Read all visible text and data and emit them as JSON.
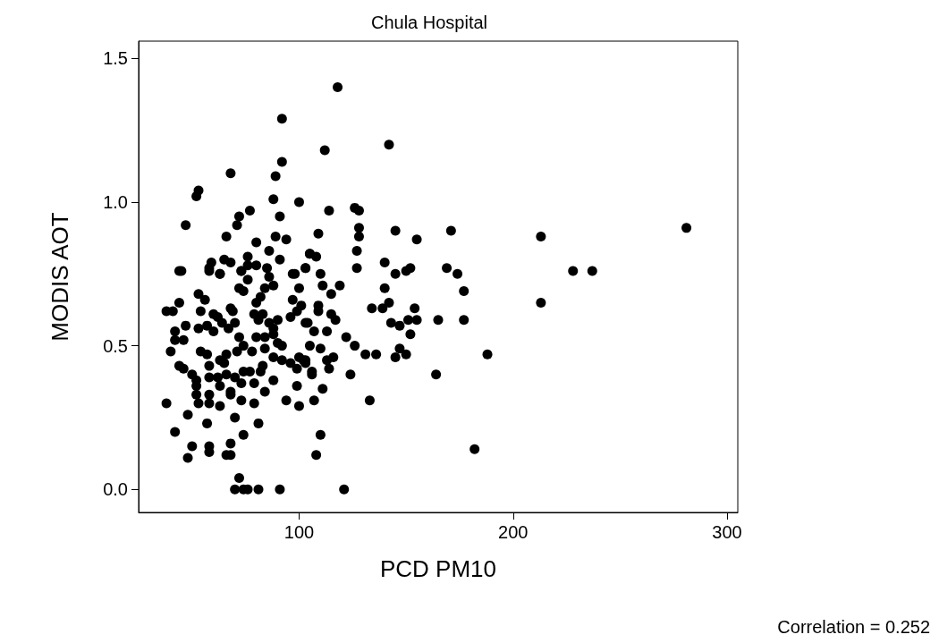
{
  "chart_data": {
    "type": "scatter",
    "title": "Chula Hospital",
    "xlabel": "PCD PM10",
    "ylabel": "MODIS AOT",
    "annotations": [
      "Correlation = 0.252"
    ],
    "marker": "circle",
    "grid": false,
    "color": "#000000",
    "xlim": [
      25,
      305
    ],
    "xticks": [
      100,
      200,
      300
    ],
    "ylim": [
      -0.08,
      1.56
    ],
    "yticks": [
      {
        "value": 0,
        "label": "0.0"
      },
      0.5,
      {
        "value": 1,
        "label": "1.0"
      },
      1.5
    ],
    "x": [
      44,
      58,
      63,
      73,
      76,
      72,
      74,
      86,
      88,
      84,
      82,
      80,
      98,
      100,
      97,
      101,
      53,
      56,
      44,
      38,
      41,
      54,
      60,
      62,
      68,
      69,
      79,
      83,
      81,
      86,
      90,
      88,
      96,
      99,
      104,
      47,
      42,
      53,
      57,
      60,
      64,
      67,
      70,
      72,
      80,
      84,
      88,
      92,
      90,
      84,
      78,
      74,
      71,
      42,
      46,
      40,
      54,
      57,
      66,
      63,
      65,
      58,
      44,
      46,
      50,
      52,
      52,
      58,
      62,
      66,
      70,
      74,
      77,
      83,
      82,
      88,
      88,
      92,
      96,
      100,
      103,
      99,
      106,
      99,
      63,
      68,
      68,
      73,
      79,
      84,
      52,
      53,
      58,
      58,
      63,
      73,
      79,
      94,
      100,
      38,
      48,
      57,
      70,
      81,
      42,
      74,
      50,
      58,
      58,
      68,
      66,
      68,
      48,
      72,
      70,
      74,
      76,
      81,
      91,
      92,
      92,
      68,
      89,
      53,
      52,
      88,
      100,
      77,
      91,
      72,
      71,
      47,
      66,
      89,
      94,
      80,
      86,
      105,
      91,
      65,
      68,
      59,
      58,
      76,
      76,
      80,
      85,
      103,
      97,
      73,
      63,
      45,
      118,
      142,
      112,
      114,
      126,
      128,
      128,
      145,
      171,
      128,
      155,
      109,
      127,
      105,
      108,
      127,
      140,
      103,
      110,
      145,
      150,
      152,
      169,
      174,
      119,
      111,
      140,
      177,
      115,
      109,
      109,
      115,
      117,
      103,
      134,
      139,
      142,
      154,
      143,
      147,
      151,
      155,
      165,
      177,
      152,
      122,
      126,
      131,
      136,
      147,
      150,
      145,
      107,
      113,
      105,
      110,
      113,
      116,
      114,
      102,
      103,
      106,
      124,
      164,
      111,
      107,
      133,
      110,
      108,
      182,
      121,
      188,
      213,
      213,
      228,
      237,
      281
    ],
    "values": [
      0.76,
      0.76,
      0.75,
      0.76,
      0.73,
      0.7,
      0.69,
      0.74,
      0.71,
      0.7,
      0.67,
      0.65,
      0.75,
      0.7,
      0.66,
      0.64,
      0.68,
      0.66,
      0.65,
      0.62,
      0.62,
      0.62,
      0.61,
      0.6,
      0.63,
      0.62,
      0.61,
      0.61,
      0.59,
      0.58,
      0.59,
      0.56,
      0.6,
      0.62,
      0.58,
      0.57,
      0.55,
      0.56,
      0.57,
      0.55,
      0.58,
      0.56,
      0.58,
      0.53,
      0.53,
      0.53,
      0.54,
      0.5,
      0.51,
      0.49,
      0.48,
      0.5,
      0.48,
      0.52,
      0.52,
      0.48,
      0.48,
      0.47,
      0.47,
      0.45,
      0.44,
      0.43,
      0.43,
      0.42,
      0.4,
      0.38,
      0.36,
      0.39,
      0.39,
      0.4,
      0.39,
      0.41,
      0.41,
      0.43,
      0.41,
      0.38,
      0.46,
      0.45,
      0.44,
      0.46,
      0.45,
      0.42,
      0.41,
      0.36,
      0.36,
      0.34,
      0.33,
      0.37,
      0.37,
      0.34,
      0.33,
      0.3,
      0.33,
      0.3,
      0.29,
      0.31,
      0.3,
      0.31,
      0.29,
      0.3,
      0.26,
      0.23,
      0.25,
      0.23,
      0.2,
      0.19,
      0.15,
      0.15,
      0.13,
      0.16,
      0.12,
      0.12,
      0.11,
      0.04,
      0,
      0,
      0,
      0,
      0,
      1.29,
      1.14,
      1.1,
      1.09,
      1.04,
      1.02,
      1.01,
      1.0,
      0.97,
      0.95,
      0.95,
      0.92,
      0.92,
      0.88,
      0.88,
      0.87,
      0.86,
      0.83,
      0.82,
      0.8,
      0.8,
      0.79,
      0.79,
      0.77,
      0.81,
      0.78,
      0.78,
      0.77,
      0.77,
      0.75,
      0.76,
      0.75,
      0.76,
      1.4,
      1.2,
      1.18,
      0.97,
      0.98,
      0.97,
      0.91,
      0.9,
      0.9,
      0.88,
      0.87,
      0.89,
      0.83,
      0.82,
      0.81,
      0.77,
      0.79,
      0.77,
      0.75,
      0.75,
      0.76,
      0.77,
      0.77,
      0.75,
      0.71,
      0.71,
      0.7,
      0.69,
      0.68,
      0.64,
      0.62,
      0.61,
      0.59,
      0.58,
      0.63,
      0.63,
      0.65,
      0.63,
      0.58,
      0.57,
      0.59,
      0.59,
      0.59,
      0.59,
      0.54,
      0.53,
      0.5,
      0.47,
      0.47,
      0.49,
      0.47,
      0.46,
      0.55,
      0.55,
      0.5,
      0.49,
      0.45,
      0.46,
      0.42,
      0.45,
      0.44,
      0.4,
      0.4,
      0.4,
      0.35,
      0.31,
      0.31,
      0.19,
      0.12,
      0.14,
      0,
      0.47,
      0.65,
      0.88,
      0.76,
      0.76,
      0.91
    ]
  }
}
